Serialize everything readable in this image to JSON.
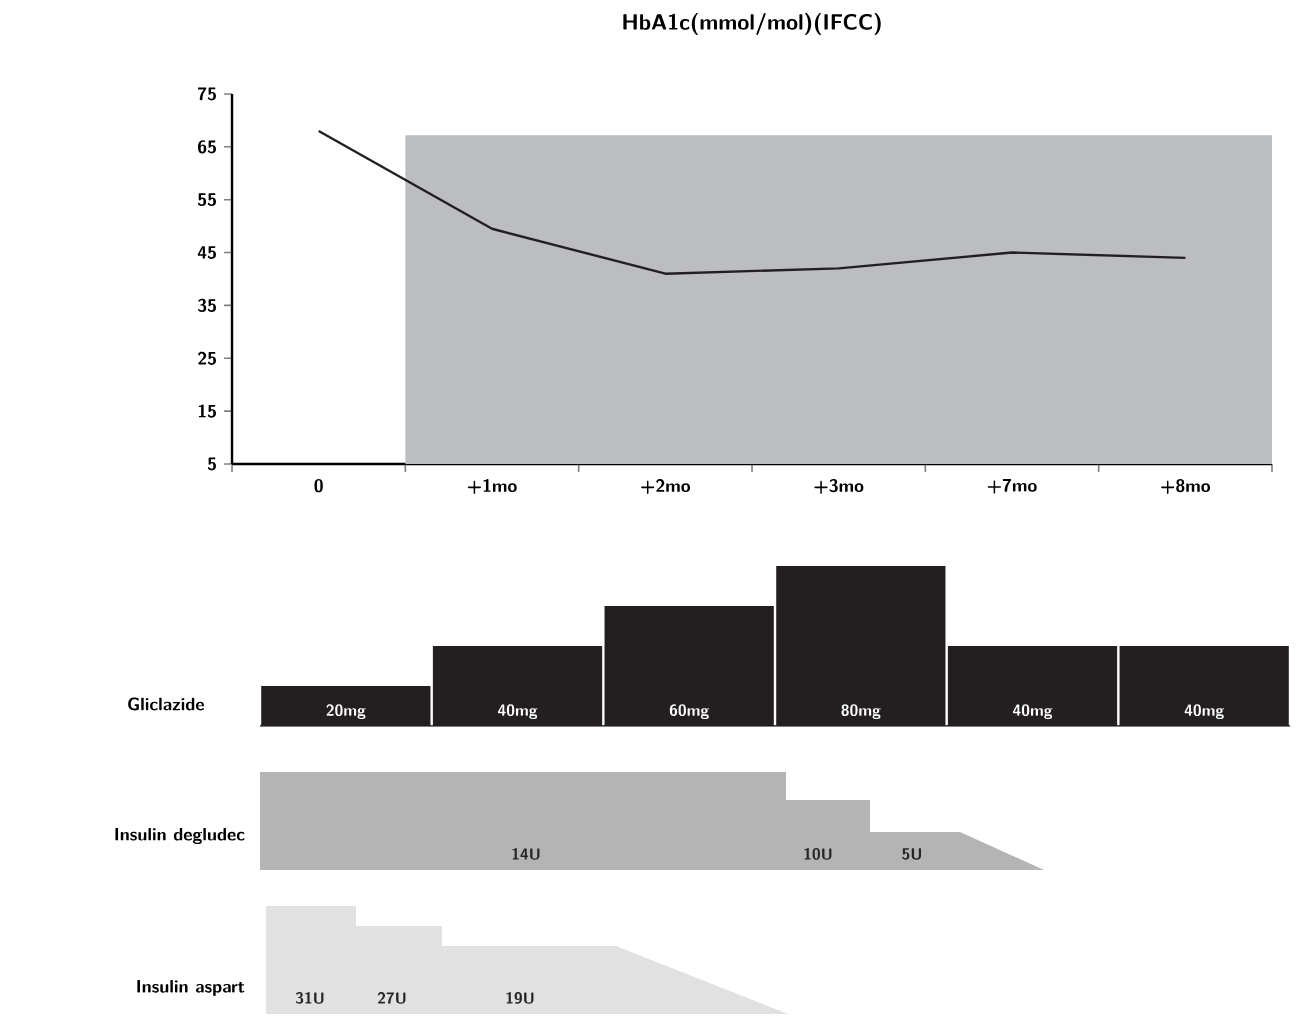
{
  "chart_data": [
    {
      "type": "line",
      "title": "HbA1c(mmol/mol)(IFCC)",
      "categories": [
        "0",
        "+1mo",
        "+2mo",
        "+3mo",
        "+7mo",
        "+8mo"
      ],
      "values": [
        68,
        49.5,
        41,
        42,
        45,
        44
      ],
      "color": "#231f20",
      "ylim": [
        5,
        75
      ],
      "yticks": [
        5,
        15,
        25,
        35,
        45,
        55,
        65,
        75
      ],
      "bands": [
        {
          "axis": "x",
          "from": "+1mo",
          "to": "+8mo",
          "color": "#bcbdc1"
        }
      ],
      "marker": "none",
      "line_style": "solid"
    },
    {
      "type": "bar",
      "ylabel": "Gliclazide",
      "categories": [
        null,
        null,
        null,
        null,
        null,
        null
      ],
      "values": [
        20,
        40,
        60,
        80,
        40,
        40
      ],
      "value_labels": [
        "20mg",
        "40mg",
        "60mg",
        "80mg",
        "40mg",
        "40mg"
      ],
      "color": "#231f20",
      "tick_labels": false
    },
    {
      "type": "other",
      "ylabel": "Insulin degludec",
      "annotations": [
        "14U",
        "10U",
        "5U"
      ]
    },
    {
      "type": "other",
      "ylabel": "Insulin aspart",
      "annotations": [
        "31U",
        "27U",
        "19U"
      ]
    }
  ]
}
